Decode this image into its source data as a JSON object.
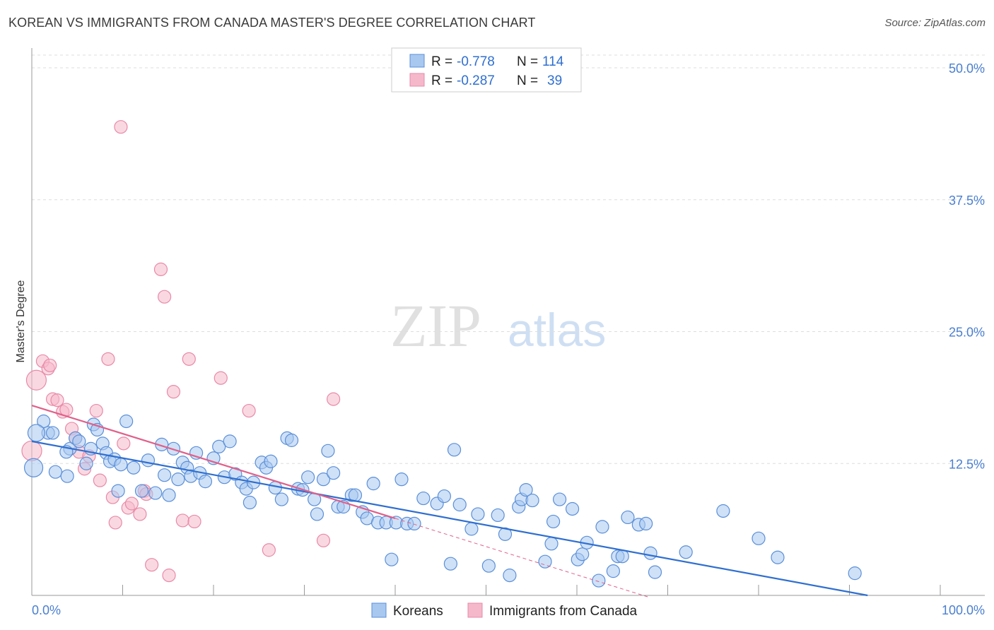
{
  "title": "KOREAN VS IMMIGRANTS FROM CANADA MASTER'S DEGREE CORRELATION CHART",
  "source": "Source: ZipAtlas.com",
  "watermark": {
    "zip": "ZIP",
    "atlas": "atlas"
  },
  "legend_top": {
    "rows": [
      {
        "r_label": "R = ",
        "r_value": "-0.778",
        "n_label": "N = ",
        "n_value": "114",
        "color": "#a8c8f0"
      },
      {
        "r_label": "R = ",
        "r_value": "-0.287",
        "n_label": "N = ",
        "n_value": "39",
        "color": "#f5b8cb"
      }
    ]
  },
  "legend_bottom": [
    {
      "label": "Koreans",
      "color": "#a8c8f0"
    },
    {
      "label": "Immigrants from Canada",
      "color": "#f5b8cb"
    }
  ],
  "chart_data": {
    "type": "scatter",
    "title": "KOREAN VS IMMIGRANTS FROM CANADA MASTER'S DEGREE CORRELATION CHART",
    "xlabel": "",
    "ylabel": "Master's Degree",
    "xlim": [
      0,
      100
    ],
    "ylim": [
      0,
      50
    ],
    "x_tick_labels": [
      "0.0%",
      "100.0%"
    ],
    "y_tick_labels": [
      "12.5%",
      "25.0%",
      "37.5%",
      "50.0%"
    ],
    "y_ticks": [
      12.5,
      25.0,
      37.5,
      50.0
    ],
    "grid": true,
    "legend": "top-center",
    "colors": {
      "koreans_fill": "#a8c8f0",
      "koreans_stroke": "#5b8fd8",
      "koreans_line": "#2f6fd0",
      "canada_fill": "#f5b8cb",
      "canada_stroke": "#e88aa8",
      "canada_line": "#e0608a"
    },
    "series": [
      {
        "name": "Koreans",
        "trend": {
          "x0": 0,
          "y0": 14.6,
          "x1": 92,
          "y1": 0
        },
        "points": [
          [
            0.2,
            12.1
          ],
          [
            1.3,
            16.5
          ],
          [
            1.8,
            15.4
          ],
          [
            2.3,
            15.4
          ],
          [
            0.5,
            15.4
          ],
          [
            4.2,
            13.9
          ],
          [
            4.8,
            14.9
          ],
          [
            5.2,
            14.6
          ],
          [
            6.5,
            13.9
          ],
          [
            6.8,
            16.2
          ],
          [
            7.2,
            15.7
          ],
          [
            7.8,
            14.4
          ],
          [
            8.2,
            13.5
          ],
          [
            8.6,
            12.7
          ],
          [
            9.1,
            12.9
          ],
          [
            9.5,
            9.9
          ],
          [
            9.8,
            12.4
          ],
          [
            10.4,
            16.5
          ],
          [
            11.2,
            12.1
          ],
          [
            12.1,
            9.9
          ],
          [
            12.8,
            12.8
          ],
          [
            13.6,
            9.7
          ],
          [
            14.3,
            14.3
          ],
          [
            14.6,
            11.4
          ],
          [
            15.1,
            9.5
          ],
          [
            15.6,
            13.9
          ],
          [
            16.1,
            11.0
          ],
          [
            16.6,
            12.6
          ],
          [
            17.1,
            12.1
          ],
          [
            17.5,
            11.3
          ],
          [
            18.1,
            13.5
          ],
          [
            18.5,
            11.6
          ],
          [
            19.1,
            10.8
          ],
          [
            20.0,
            13.0
          ],
          [
            20.6,
            14.1
          ],
          [
            21.2,
            11.2
          ],
          [
            21.8,
            14.6
          ],
          [
            22.4,
            11.5
          ],
          [
            23.1,
            10.7
          ],
          [
            23.6,
            10.1
          ],
          [
            24.0,
            8.8
          ],
          [
            24.4,
            10.7
          ],
          [
            25.3,
            12.6
          ],
          [
            25.8,
            12.1
          ],
          [
            26.3,
            12.7
          ],
          [
            26.8,
            10.2
          ],
          [
            27.5,
            9.1
          ],
          [
            28.1,
            14.9
          ],
          [
            28.6,
            14.7
          ],
          [
            29.3,
            10.1
          ],
          [
            29.8,
            10.0
          ],
          [
            30.4,
            11.2
          ],
          [
            31.1,
            9.1
          ],
          [
            31.4,
            7.7
          ],
          [
            32.1,
            11.0
          ],
          [
            32.6,
            13.7
          ],
          [
            33.2,
            11.6
          ],
          [
            33.7,
            8.4
          ],
          [
            34.3,
            8.4
          ],
          [
            35.2,
            9.5
          ],
          [
            35.6,
            9.5
          ],
          [
            36.4,
            7.9
          ],
          [
            36.9,
            7.3
          ],
          [
            37.6,
            10.6
          ],
          [
            38.1,
            6.9
          ],
          [
            39.0,
            6.9
          ],
          [
            39.6,
            3.4
          ],
          [
            40.1,
            6.9
          ],
          [
            40.7,
            11.0
          ],
          [
            41.3,
            6.8
          ],
          [
            42.1,
            6.8
          ],
          [
            43.1,
            9.2
          ],
          [
            44.6,
            8.7
          ],
          [
            45.4,
            9.4
          ],
          [
            46.1,
            3.0
          ],
          [
            46.5,
            13.8
          ],
          [
            47.1,
            8.6
          ],
          [
            48.4,
            6.3
          ],
          [
            49.1,
            7.7
          ],
          [
            50.3,
            2.8
          ],
          [
            51.3,
            7.6
          ],
          [
            52.1,
            5.8
          ],
          [
            52.6,
            1.9
          ],
          [
            53.6,
            8.4
          ],
          [
            53.9,
            9.1
          ],
          [
            54.4,
            10.0
          ],
          [
            55.1,
            9.0
          ],
          [
            56.5,
            3.2
          ],
          [
            57.2,
            4.9
          ],
          [
            57.4,
            7.0
          ],
          [
            58.1,
            9.1
          ],
          [
            59.5,
            8.2
          ],
          [
            60.1,
            3.4
          ],
          [
            60.6,
            3.9
          ],
          [
            61.1,
            5.0
          ],
          [
            62.4,
            1.4
          ],
          [
            62.8,
            6.5
          ],
          [
            64.0,
            2.3
          ],
          [
            64.5,
            3.7
          ],
          [
            65.0,
            3.7
          ],
          [
            65.6,
            7.4
          ],
          [
            66.8,
            6.7
          ],
          [
            67.6,
            6.8
          ],
          [
            68.1,
            4.0
          ],
          [
            68.6,
            2.2
          ],
          [
            72.0,
            4.1
          ],
          [
            76.1,
            8.0
          ],
          [
            80.0,
            5.4
          ],
          [
            82.1,
            3.6
          ],
          [
            90.6,
            2.1
          ],
          [
            2.6,
            11.7
          ],
          [
            3.9,
            11.3
          ],
          [
            3.8,
            13.6
          ],
          [
            6.0,
            12.5
          ]
        ]
      },
      {
        "name": "Immigrants from Canada",
        "trend": {
          "x0": 0,
          "y0": 18.0,
          "x1": 40,
          "y1": 7.3
        },
        "points": [
          [
            0.0,
            13.7
          ],
          [
            0.5,
            20.4
          ],
          [
            1.2,
            22.2
          ],
          [
            1.8,
            21.5
          ],
          [
            2.3,
            18.6
          ],
          [
            2.8,
            18.5
          ],
          [
            3.4,
            17.4
          ],
          [
            3.8,
            17.6
          ],
          [
            4.4,
            15.8
          ],
          [
            4.8,
            14.9
          ],
          [
            5.2,
            13.6
          ],
          [
            5.8,
            12.0
          ],
          [
            6.3,
            13.2
          ],
          [
            7.1,
            17.5
          ],
          [
            7.5,
            10.9
          ],
          [
            8.4,
            22.4
          ],
          [
            8.9,
            9.3
          ],
          [
            9.2,
            6.9
          ],
          [
            9.8,
            44.4
          ],
          [
            10.1,
            14.4
          ],
          [
            10.6,
            8.3
          ],
          [
            11.0,
            8.7
          ],
          [
            11.9,
            7.7
          ],
          [
            12.4,
            9.9
          ],
          [
            12.6,
            9.6
          ],
          [
            13.2,
            2.9
          ],
          [
            14.2,
            30.9
          ],
          [
            14.6,
            28.3
          ],
          [
            15.1,
            1.9
          ],
          [
            15.6,
            19.3
          ],
          [
            16.6,
            7.1
          ],
          [
            17.3,
            22.4
          ],
          [
            17.9,
            7.0
          ],
          [
            20.8,
            20.6
          ],
          [
            23.9,
            17.5
          ],
          [
            26.1,
            4.3
          ],
          [
            32.1,
            5.2
          ],
          [
            33.2,
            18.6
          ],
          [
            2.0,
            21.8
          ]
        ]
      }
    ]
  }
}
